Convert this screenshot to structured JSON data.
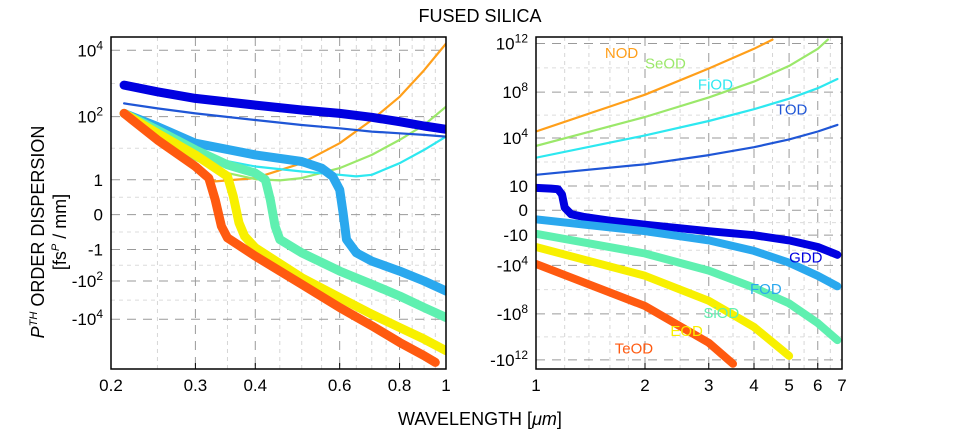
{
  "figure": {
    "title": "FUSED SILICA",
    "xlabel": "WAVELENGTH [",
    "xlabel_unit": "μm",
    "xlabel_end": "]",
    "ylabel_p": "P",
    "ylabel_th": "TH",
    "ylabel_rest": " ORDER DISPERSION",
    "ylabel2_a": "[fs",
    "ylabel2_p": "P",
    "ylabel2_b": " / mm]"
  },
  "chart_data": [
    {
      "type": "line",
      "yscale": "signed-log (arcsinh-like)",
      "xscale": "log",
      "xlim": [
        0.2,
        1
      ],
      "xticks": [
        {
          "v": 0.2,
          "label": "0.2"
        },
        {
          "v": 0.3,
          "label": "0.3"
        },
        {
          "v": 0.4,
          "label": "0.4"
        },
        {
          "v": 0.6,
          "label": "0.6"
        },
        {
          "v": 0.8,
          "label": "0.8"
        },
        {
          "v": 1.0,
          "label": "1"
        }
      ],
      "ytick_labels": [
        "10^4",
        "10^2",
        "1",
        "0",
        "-1",
        "-10^2",
        "-10^4"
      ],
      "grid": true,
      "series": [
        {
          "color": "#ff9f1a",
          "x": [
            0.213,
            0.25,
            0.3,
            0.33,
            0.4,
            0.5,
            0.6,
            0.7,
            0.8,
            0.9,
            1.0
          ],
          "y": [
            2.1,
            1.25,
            0.5,
            0.05,
            0.15,
            0.6,
            1.2,
            1.9,
            2.6,
            3.4,
            4.2
          ]
        },
        {
          "color": "#9be86a",
          "x": [
            0.213,
            0.25,
            0.3,
            0.35,
            0.4,
            0.45,
            0.5,
            0.6,
            0.7,
            0.8,
            0.9,
            1.0
          ],
          "y": [
            2.1,
            1.4,
            0.7,
            0.3,
            0.12,
            0.08,
            0.15,
            0.45,
            0.85,
            1.3,
            1.75,
            2.3
          ]
        },
        {
          "color": "#2de8f0",
          "x": [
            0.213,
            0.25,
            0.3,
            0.4,
            0.5,
            0.6,
            0.65,
            0.7,
            0.8,
            0.9,
            1.0
          ],
          "y": [
            2.1,
            1.5,
            0.85,
            0.5,
            0.35,
            0.25,
            0.2,
            0.25,
            0.6,
            1.0,
            1.4
          ]
        },
        {
          "color": "#1f56d6",
          "x": [
            0.213,
            0.25,
            0.3,
            0.4,
            0.5,
            0.6,
            0.7,
            0.8,
            0.9,
            1.0
          ],
          "y": [
            2.4,
            2.25,
            2.1,
            1.9,
            1.75,
            1.65,
            1.55,
            1.5,
            1.45,
            1.4
          ]
        },
        {
          "color": "#0000e0",
          "x": [
            0.213,
            0.25,
            0.3,
            0.4,
            0.5,
            0.6,
            0.7,
            0.8,
            0.9,
            1.0
          ],
          "y": [
            2.95,
            2.75,
            2.55,
            2.35,
            2.2,
            2.1,
            1.98,
            1.85,
            1.72,
            1.62
          ]
        },
        {
          "color": "#2aa8ee",
          "x": [
            0.213,
            0.25,
            0.3,
            0.4,
            0.5,
            0.55,
            0.58,
            0.6,
            0.61,
            0.62,
            0.65,
            0.7,
            0.8,
            0.9,
            1.0
          ],
          "y": [
            2.1,
            1.7,
            1.2,
            0.85,
            0.65,
            0.45,
            0.2,
            -0.2,
            -0.9,
            -1.7,
            -2.1,
            -2.35,
            -2.65,
            -2.95,
            -3.25
          ]
        },
        {
          "color": "#5ff0b0",
          "x": [
            0.213,
            0.25,
            0.3,
            0.35,
            0.4,
            0.42,
            0.43,
            0.44,
            0.45,
            0.5,
            0.6,
            0.7,
            0.8,
            0.9,
            1.0
          ],
          "y": [
            2.1,
            1.6,
            1.0,
            0.55,
            0.3,
            0.1,
            -0.5,
            -1.3,
            -1.7,
            -2.1,
            -2.65,
            -3.05,
            -3.4,
            -3.75,
            -4.05
          ]
        },
        {
          "color": "#f8f000",
          "x": [
            0.213,
            0.25,
            0.3,
            0.33,
            0.35,
            0.36,
            0.37,
            0.38,
            0.4,
            0.5,
            0.6,
            0.7,
            0.8,
            0.9,
            1.0
          ],
          "y": [
            2.1,
            1.5,
            0.85,
            0.45,
            0.2,
            -0.4,
            -1.2,
            -1.6,
            -1.95,
            -2.85,
            -3.45,
            -3.95,
            -4.35,
            -4.7,
            -5.05
          ]
        },
        {
          "color": "#ff5a10",
          "x": [
            0.213,
            0.25,
            0.3,
            0.32,
            0.33,
            0.34,
            0.35,
            0.4,
            0.5,
            0.6,
            0.7,
            0.8,
            0.9,
            0.95
          ],
          "y": [
            2.1,
            1.3,
            0.5,
            0.15,
            -0.5,
            -1.3,
            -1.65,
            -2.2,
            -3.05,
            -3.75,
            -4.3,
            -4.8,
            -5.2,
            -5.4
          ]
        }
      ]
    },
    {
      "type": "line",
      "yscale": "signed-log (arcsinh-like)",
      "xscale": "log",
      "xlim": [
        1,
        7
      ],
      "xticks": [
        {
          "v": 1,
          "label": "1"
        },
        {
          "v": 2,
          "label": "2"
        },
        {
          "v": 3,
          "label": "3"
        },
        {
          "v": 4,
          "label": "4"
        },
        {
          "v": 5,
          "label": "5"
        },
        {
          "v": 6,
          "label": "6"
        },
        {
          "v": 7,
          "label": "7"
        }
      ],
      "ytick_labels": [
        "10^12",
        "10^8",
        "10^4",
        "10",
        "0",
        "-10",
        "-10^4",
        "-10^8",
        "-10^12"
      ],
      "grid": true,
      "series": [
        {
          "name": "NOD",
          "color": "#ff9f1a",
          "x": [
            1,
            2,
            3,
            4,
            4.5
          ],
          "y": [
            5.3,
            8.1,
            10.1,
            11.6,
            12.3
          ],
          "label_pos": [
            1.55,
            10.9
          ]
        },
        {
          "name": "SeOD",
          "color": "#9be86a",
          "x": [
            1,
            2,
            3,
            4,
            5,
            6,
            6.4
          ],
          "y": [
            4.2,
            6.4,
            7.9,
            9.1,
            10.3,
            11.6,
            12.3
          ],
          "label_pos": [
            2.0,
            10.1
          ]
        },
        {
          "name": "FiOD",
          "color": "#2de8f0",
          "x": [
            1,
            2,
            3,
            4,
            5,
            6,
            6.8
          ],
          "y": [
            3.3,
            5.0,
            6.1,
            7.0,
            7.8,
            8.6,
            9.3
          ],
          "label_pos": [
            2.8,
            8.5
          ]
        },
        {
          "name": "TOD",
          "color": "#1f56d6",
          "x": [
            1,
            2,
            3,
            4,
            5,
            6,
            6.8
          ],
          "y": [
            2.0,
            2.8,
            3.5,
            4.1,
            4.7,
            5.3,
            5.8
          ],
          "label_pos": [
            4.6,
            6.6
          ]
        },
        {
          "name": "GDD",
          "color": "#0000e0",
          "x": [
            1,
            1.1,
            1.15,
            1.18,
            1.2,
            1.25,
            1.35,
            1.6,
            2,
            3,
            4,
            5,
            6,
            6.8
          ],
          "y": [
            1.0,
            0.95,
            0.9,
            0.5,
            -0.5,
            -1.0,
            -1.2,
            -1.5,
            -1.8,
            -2.3,
            -2.6,
            -3.0,
            -3.5,
            -4.1
          ],
          "label_pos": [
            5.0,
            -4.7
          ]
        },
        {
          "name": "FOD",
          "color": "#2aa8ee",
          "x": [
            1,
            2,
            3,
            4,
            5,
            6,
            6.8
          ],
          "y": [
            -1.4,
            -2.3,
            -3.0,
            -3.8,
            -4.7,
            -5.7,
            -6.5
          ],
          "label_pos": [
            3.9,
            -7.1
          ]
        },
        {
          "name": "SiOD",
          "color": "#5ff0b0",
          "x": [
            1,
            2,
            3,
            4,
            5,
            6,
            6.8
          ],
          "y": [
            -2.5,
            -4.0,
            -5.3,
            -6.6,
            -7.8,
            -9.3,
            -10.6
          ],
          "label_pos": [
            2.9,
            -8.9
          ]
        },
        {
          "name": "EOD",
          "color": "#f8f000",
          "x": [
            1,
            2,
            3,
            4,
            5
          ],
          "y": [
            -3.5,
            -5.7,
            -7.6,
            -9.6,
            -11.8
          ],
          "label_pos": [
            2.35,
            -10.3
          ]
        },
        {
          "name": "TeOD",
          "color": "#ff5a10",
          "x": [
            1,
            2,
            3,
            3.5
          ],
          "y": [
            -4.8,
            -8.0,
            -10.8,
            -12.4
          ],
          "label_pos": [
            1.65,
            -11.6
          ]
        }
      ]
    }
  ]
}
